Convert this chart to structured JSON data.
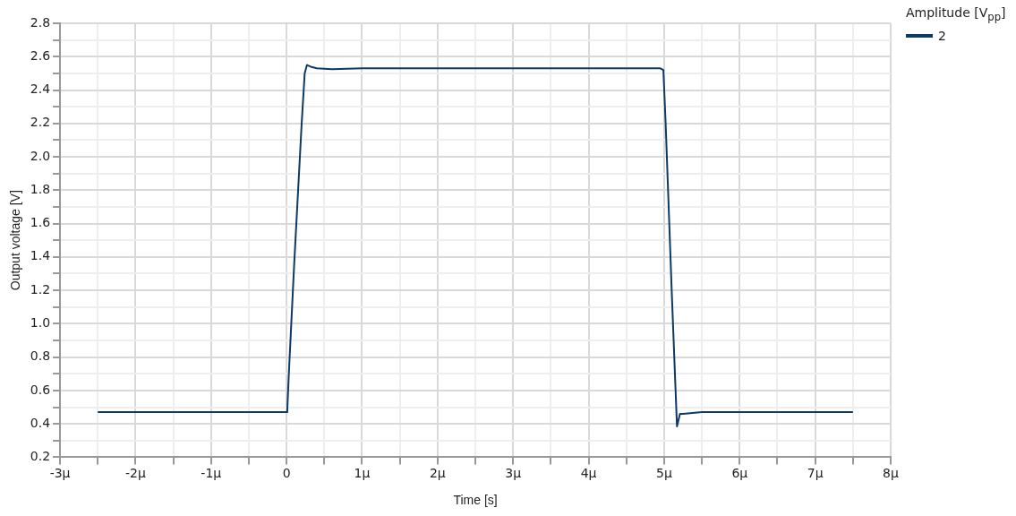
{
  "chart_data": {
    "type": "line",
    "xlabel": "Time [s]",
    "ylabel": "Output voltage [V]",
    "legend_title": "Amplitude [V$_{pp}$]",
    "legend": "top right",
    "grid": true,
    "marker": "none",
    "line_style": "solid",
    "xlim": [
      -3,
      8
    ],
    "ylim": [
      0.2,
      2.8
    ],
    "xticks": [
      {
        "value": -3,
        "label": "-3µ"
      },
      {
        "value": -2.5,
        "label": null
      },
      {
        "value": -2,
        "label": "-2µ"
      },
      {
        "value": -1.5,
        "label": null
      },
      {
        "value": -1,
        "label": "-1µ"
      },
      {
        "value": -0.5,
        "label": null
      },
      0,
      {
        "value": 0.5,
        "label": null
      },
      {
        "value": 1,
        "label": "1µ"
      },
      {
        "value": 1.5,
        "label": null
      },
      {
        "value": 2,
        "label": "2µ"
      },
      {
        "value": 2.5,
        "label": null
      },
      {
        "value": 3,
        "label": "3µ"
      },
      {
        "value": 3.5,
        "label": null
      },
      {
        "value": 4,
        "label": "4µ"
      },
      {
        "value": 4.5,
        "label": null
      },
      {
        "value": 5,
        "label": "5µ"
      },
      {
        "value": 5.5,
        "label": null
      },
      {
        "value": 6,
        "label": "6µ"
      },
      {
        "value": 6.5,
        "label": null
      },
      {
        "value": 7,
        "label": "7µ"
      },
      {
        "value": 7.5,
        "label": null
      },
      {
        "value": 8,
        "label": "8µ"
      }
    ],
    "yticks": [
      0.2,
      {
        "value": 0.3,
        "label": null
      },
      0.4,
      {
        "value": 0.5,
        "label": null
      },
      0.6,
      {
        "value": 0.7,
        "label": null
      },
      0.8,
      {
        "value": 0.9,
        "label": null
      },
      {
        "value": 1.0,
        "label": "1.0"
      },
      {
        "value": 1.1,
        "label": null
      },
      1.2,
      {
        "value": 1.3,
        "label": null
      },
      1.4,
      {
        "value": 1.5,
        "label": null
      },
      1.6,
      {
        "value": 1.7,
        "label": null
      },
      1.8,
      {
        "value": 1.9,
        "label": null
      },
      {
        "value": 2.0,
        "label": "2.0"
      },
      {
        "value": 2.1,
        "label": null
      },
      2.2,
      {
        "value": 2.3,
        "label": null
      },
      2.4,
      {
        "value": 2.5,
        "label": null
      },
      2.6,
      {
        "value": 2.7,
        "label": null
      },
      2.8
    ],
    "x": [
      -2.5,
      -1,
      0,
      0.01,
      0.03,
      0.1,
      0.2,
      0.24,
      0.27,
      0.32,
      0.4,
      0.6,
      1,
      3,
      4.95,
      4.99,
      5.02,
      5.1,
      5.17,
      5.21,
      5.25,
      5.5,
      6,
      7.5
    ],
    "series": [
      {
        "name": "2",
        "color": "#0d3a63",
        "values": [
          0.47,
          0.47,
          0.47,
          0.49,
          0.7,
          1.35,
          2.2,
          2.5,
          2.55,
          2.54,
          2.53,
          2.525,
          2.53,
          2.53,
          2.53,
          2.52,
          2.2,
          1.2,
          0.385,
          0.46,
          0.46,
          0.47,
          0.47,
          0.47
        ]
      }
    ]
  }
}
